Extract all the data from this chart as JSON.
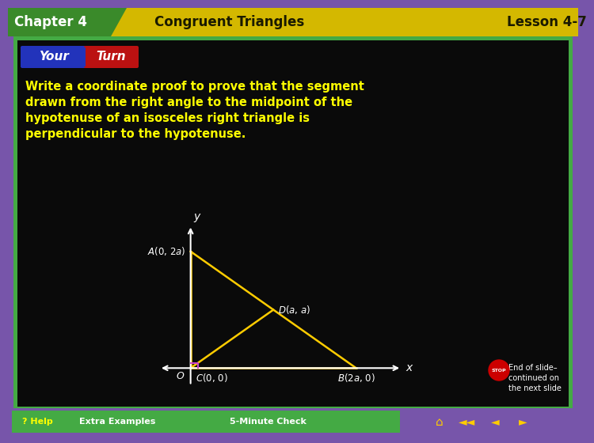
{
  "header_gold_bg": "#d4b800",
  "header_green_bg": "#3a8a2a",
  "header_text_chapter": "Chapter 4",
  "header_text_title": "Congruent Triangles",
  "header_text_lesson": "Lesson 4-7",
  "your_turn_blue": "#2233bb",
  "your_turn_red": "#bb1111",
  "your_turn_text_your": "Your",
  "your_turn_text_turn": "Turn",
  "body_text_line1": "Write a coordinate proof to prove that the segment",
  "body_text_line2": "drawn from the right angle to the midpoint of the",
  "body_text_line3": "hypotenuse of an isosceles right triangle is",
  "body_text_line4": "perpendicular to the hypotenuse.",
  "body_text_color": "#ffff00",
  "slide_bg": "#0a0a0a",
  "outer_border": "#7755aa",
  "inner_border": "#44aa44",
  "triangle_color": "#ffcc00",
  "axis_color": "#ffffff",
  "right_angle_color": "#cc44cc",
  "footer_purple": "#7755aa",
  "footer_green": "#44aa44",
  "nav_gold": "#ffcc00"
}
